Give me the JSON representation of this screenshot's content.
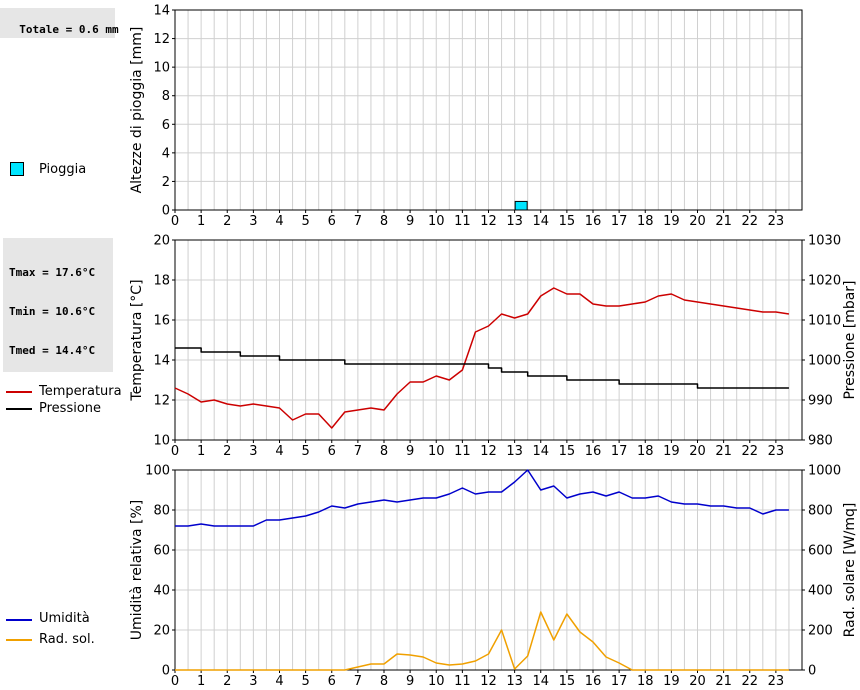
{
  "summary": {
    "rain": "Totale = 0.6 mm",
    "temp": [
      "Tmax = 17.6°C",
      "Tmin = 10.6°C",
      "Tmed = 14.4°C"
    ]
  },
  "legend": {
    "rain": "Pioggia",
    "temperature": "Temperatura",
    "pressure": "Pressione",
    "humidity": "Umidità",
    "radiation": "Rad. sol."
  },
  "colors": {
    "rain": "#00e5ff",
    "temperature": "#cc0000",
    "pressure": "#000000",
    "humidity": "#0000cc",
    "radiation": "#f0a000",
    "grid": "#d0d0d0"
  },
  "chart_data": [
    {
      "type": "bar",
      "ylabel": "Altezze di pioggia [mm]",
      "ylim": [
        0,
        14
      ],
      "yticks": [
        0,
        2,
        4,
        6,
        8,
        10,
        12,
        14
      ],
      "xlim": [
        0,
        24
      ],
      "xticks": [
        0,
        1,
        2,
        3,
        4,
        5,
        6,
        7,
        8,
        9,
        10,
        11,
        12,
        13,
        14,
        15,
        16,
        17,
        18,
        19,
        20,
        21,
        22,
        23
      ],
      "grid": true,
      "series": [
        {
          "name": "Pioggia",
          "bars": [
            {
              "x": 13.25,
              "value": 0.6
            }
          ]
        }
      ]
    },
    {
      "type": "line",
      "ylabel": "Temperatura [°C]",
      "ylabel_right": "Pressione [mbar]",
      "ylim": [
        10,
        20
      ],
      "yticks": [
        10,
        12,
        14,
        16,
        18,
        20
      ],
      "ylim_right": [
        980,
        1030
      ],
      "yticks_right": [
        980,
        990,
        1000,
        1010,
        1020,
        1030
      ],
      "xlim": [
        0,
        24
      ],
      "xticks": [
        0,
        1,
        2,
        3,
        4,
        5,
        6,
        7,
        8,
        9,
        10,
        11,
        12,
        13,
        14,
        15,
        16,
        17,
        18,
        19,
        20,
        21,
        22,
        23
      ],
      "grid": true,
      "series": [
        {
          "name": "Temperatura",
          "axis": "left",
          "x": [
            0,
            0.5,
            1,
            1.5,
            2,
            2.5,
            3,
            3.5,
            4,
            4.5,
            5,
            5.5,
            6,
            6.5,
            7,
            7.5,
            8,
            8.5,
            9,
            9.5,
            10,
            10.5,
            11,
            11.5,
            12,
            12.5,
            13,
            13.5,
            14,
            14.5,
            15,
            15.5,
            16,
            16.5,
            17,
            17.5,
            18,
            18.5,
            19,
            19.5,
            20,
            20.5,
            21,
            21.5,
            22,
            22.5,
            23,
            23.5
          ],
          "y": [
            12.6,
            12.3,
            11.9,
            12.0,
            11.8,
            11.7,
            11.8,
            11.7,
            11.6,
            11.0,
            11.3,
            11.3,
            10.6,
            11.4,
            11.5,
            11.6,
            11.5,
            12.3,
            12.9,
            12.9,
            13.2,
            13.0,
            13.5,
            15.4,
            15.7,
            16.3,
            16.1,
            16.3,
            17.2,
            17.6,
            17.3,
            17.3,
            16.8,
            16.7,
            16.7,
            16.8,
            16.9,
            17.2,
            17.3,
            17.0,
            16.9,
            16.8,
            16.7,
            16.6,
            16.5,
            16.4,
            16.4,
            16.3
          ]
        },
        {
          "name": "Pressione",
          "axis": "right",
          "x": [
            0,
            0.5,
            1,
            1.5,
            2,
            2.5,
            3,
            3.5,
            4,
            4.5,
            5,
            5.5,
            6,
            6.5,
            7,
            7.5,
            8,
            8.5,
            9,
            9.5,
            10,
            10.5,
            11,
            11.5,
            12,
            12.5,
            13,
            13.5,
            14,
            14.5,
            15,
            15.5,
            16,
            16.5,
            17,
            17.5,
            18,
            18.5,
            19,
            19.5,
            20,
            20.5,
            21,
            21.5,
            22,
            22.5,
            23,
            23.5
          ],
          "y": [
            1003,
            1003,
            1002,
            1002,
            1002,
            1001,
            1001,
            1001,
            1000,
            1000,
            1000,
            1000,
            1000,
            999,
            999,
            999,
            999,
            999,
            999,
            999,
            999,
            999,
            999,
            999,
            998,
            997,
            997,
            996,
            996,
            996,
            995,
            995,
            995,
            995,
            994,
            994,
            994,
            994,
            994,
            994,
            993,
            993,
            993,
            993,
            993,
            993,
            993,
            993
          ]
        }
      ]
    },
    {
      "type": "line",
      "ylabel": "Umidità relativa [%]",
      "ylabel_right": "Rad. solare [W/mq]",
      "ylim": [
        0,
        100
      ],
      "yticks": [
        0,
        20,
        40,
        60,
        80,
        100
      ],
      "ylim_right": [
        0,
        1000
      ],
      "yticks_right": [
        0,
        200,
        400,
        600,
        800,
        1000
      ],
      "xlim": [
        0,
        24
      ],
      "xticks": [
        0,
        1,
        2,
        3,
        4,
        5,
        6,
        7,
        8,
        9,
        10,
        11,
        12,
        13,
        14,
        15,
        16,
        17,
        18,
        19,
        20,
        21,
        22,
        23
      ],
      "grid": true,
      "series": [
        {
          "name": "Umidità",
          "axis": "left",
          "x": [
            0,
            0.5,
            1,
            1.5,
            2,
            2.5,
            3,
            3.5,
            4,
            4.5,
            5,
            5.5,
            6,
            6.5,
            7,
            7.5,
            8,
            8.5,
            9,
            9.5,
            10,
            10.5,
            11,
            11.5,
            12,
            12.5,
            13,
            13.5,
            14,
            14.5,
            15,
            15.5,
            16,
            16.5,
            17,
            17.5,
            18,
            18.5,
            19,
            19.5,
            20,
            20.5,
            21,
            21.5,
            22,
            22.5,
            23,
            23.5
          ],
          "y": [
            72,
            72,
            73,
            72,
            72,
            72,
            72,
            75,
            75,
            76,
            77,
            79,
            82,
            81,
            83,
            84,
            85,
            84,
            85,
            86,
            86,
            88,
            91,
            88,
            89,
            89,
            94,
            100,
            90,
            92,
            86,
            88,
            89,
            87,
            89,
            86,
            86,
            87,
            84,
            83,
            83,
            82,
            82,
            81,
            81,
            78,
            80,
            80
          ]
        },
        {
          "name": "Rad. sol.",
          "axis": "right",
          "x": [
            0,
            0.5,
            1,
            1.5,
            2,
            2.5,
            3,
            3.5,
            4,
            4.5,
            5,
            5.5,
            6,
            6.5,
            7,
            7.5,
            8,
            8.5,
            9,
            9.5,
            10,
            10.5,
            11,
            11.5,
            12,
            12.5,
            13,
            13.5,
            14,
            14.5,
            15,
            15.5,
            16,
            16.5,
            17,
            17.5,
            18,
            18.5,
            19,
            19.5,
            20,
            20.5,
            21,
            21.5,
            22,
            22.5,
            23,
            23.5
          ],
          "y": [
            0,
            0,
            0,
            0,
            0,
            0,
            0,
            0,
            0,
            0,
            0,
            0,
            0,
            0,
            15,
            30,
            30,
            80,
            75,
            65,
            35,
            25,
            30,
            45,
            80,
            200,
            5,
            70,
            290,
            150,
            280,
            190,
            140,
            65,
            35,
            0,
            0,
            0,
            0,
            0,
            0,
            0,
            0,
            0,
            0,
            0,
            0,
            0
          ]
        }
      ]
    }
  ]
}
